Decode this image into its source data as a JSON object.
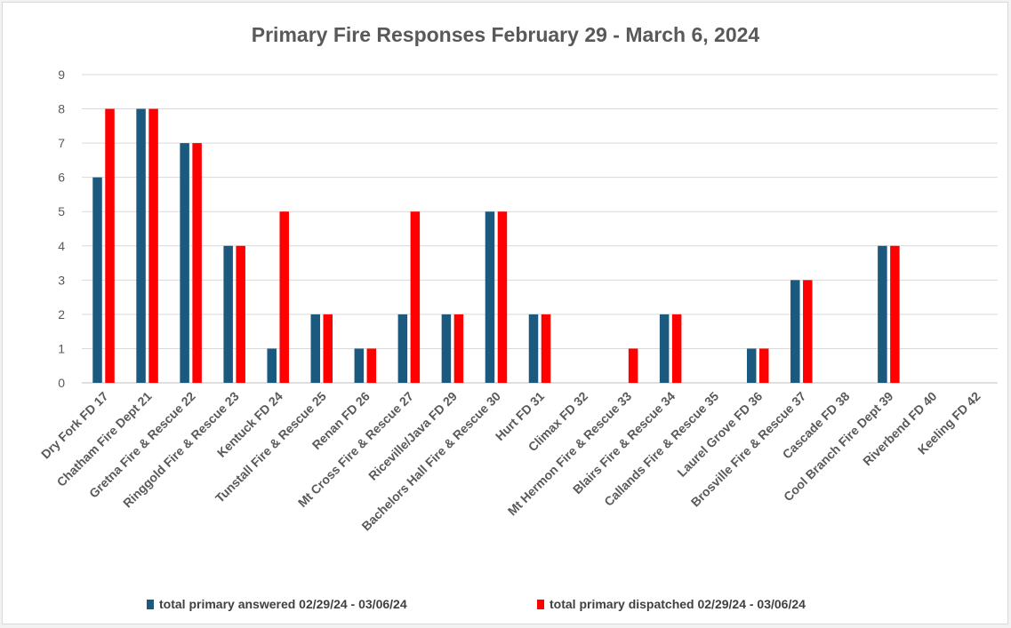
{
  "chart_data": {
    "type": "bar",
    "title": "Primary Fire Responses February 29 - March 6, 2024",
    "xlabel": "",
    "ylabel": "",
    "ylim": [
      0,
      9
    ],
    "yticks": [
      0,
      1,
      2,
      3,
      4,
      5,
      6,
      7,
      8,
      9
    ],
    "grid": true,
    "legend_position": "bottom",
    "categories": [
      "Dry Fork FD  17",
      "Chatham Fire Dept 21",
      "Gretna Fire & Rescue 22",
      "Ringgold Fire & Rescue 23",
      "Kentuck FD 24",
      "Tunstall Fire & Rescue 25",
      "Renan FD 26",
      "Mt Cross Fire & Rescue 27",
      "Riceville/Java FD 29",
      "Bachelors Hall Fire & Rescue 30",
      "Hurt FD 31",
      "Climax FD  32",
      "Mt Hermon Fire & Rescue 33",
      "Blairs Fire & Rescue 34",
      "Callands Fire & Rescue 35",
      "Laurel Grove FD 36",
      "Brosville Fire & Rescue 37",
      "Cascade FD 38",
      "Cool Branch Fire Dept 39",
      "Riverbend FD 40",
      "Keeling FD 42"
    ],
    "series": [
      {
        "name": "total primary answered 02/29/24 - 03/06/24",
        "color": "#1b5a7e",
        "values": [
          6,
          8,
          7,
          4,
          1,
          2,
          1,
          2,
          2,
          5,
          2,
          0,
          0,
          2,
          0,
          1,
          3,
          0,
          4,
          0,
          0
        ]
      },
      {
        "name": "total primary dispatched 02/29/24 - 03/06/24",
        "color": "#ff0000",
        "values": [
          8,
          8,
          7,
          4,
          5,
          2,
          1,
          5,
          2,
          5,
          2,
          0,
          1,
          2,
          0,
          1,
          3,
          0,
          4,
          0,
          0
        ]
      }
    ]
  }
}
